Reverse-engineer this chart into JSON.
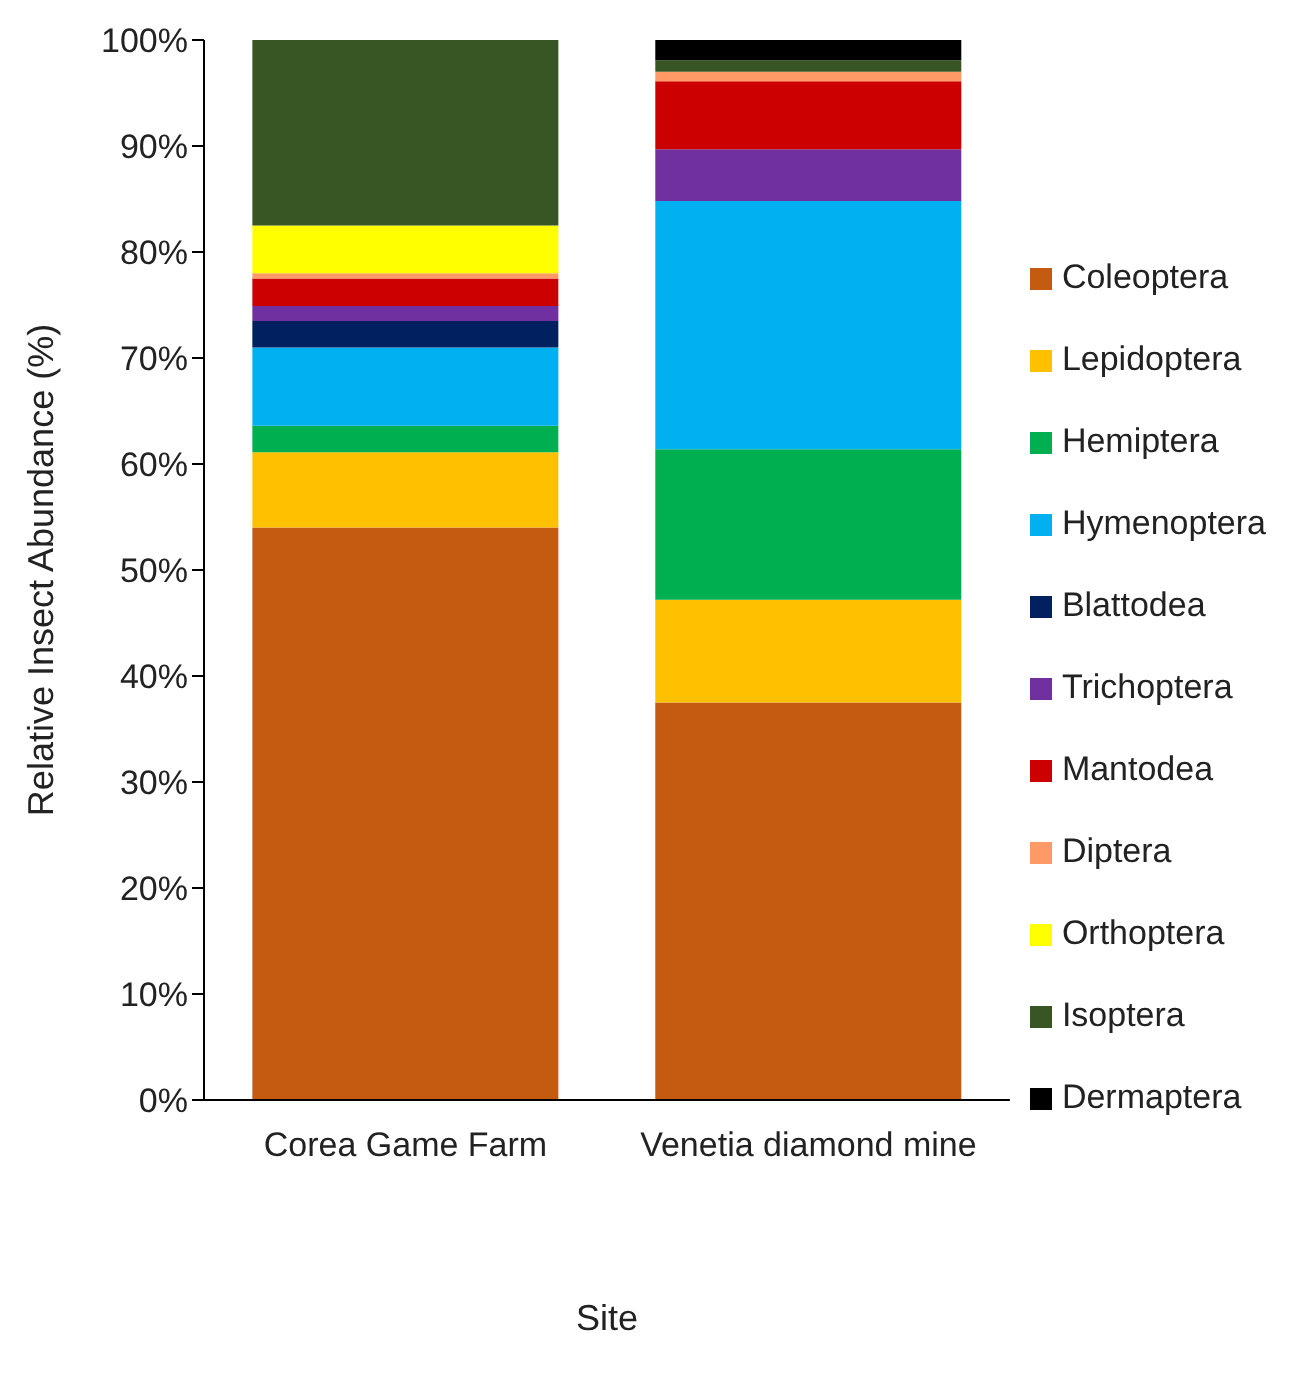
{
  "chart_data": {
    "type": "bar",
    "stacked": true,
    "xlabel": "Site",
    "ylabel": "Relative Insect Abundance (%)",
    "categories": [
      "Corea Game Farm",
      "Venetia diamond mine"
    ],
    "series": [
      {
        "name": "Coleoptera",
        "color": "#c55a11",
        "values": [
          54.0,
          37.5
        ]
      },
      {
        "name": "Lepidoptera",
        "color": "#ffc000",
        "values": [
          7.1,
          9.7
        ]
      },
      {
        "name": "Hemiptera",
        "color": "#00b050",
        "values": [
          2.5,
          14.2
        ]
      },
      {
        "name": "Hymenoptera",
        "color": "#00b0f0",
        "values": [
          7.4,
          23.4
        ]
      },
      {
        "name": "Blattodea",
        "color": "#002060",
        "values": [
          2.5,
          0
        ]
      },
      {
        "name": "Trichoptera",
        "color": "#7030a0",
        "values": [
          1.4,
          4.9
        ]
      },
      {
        "name": "Mantodea",
        "color": "#cc0000",
        "values": [
          2.6,
          6.4
        ]
      },
      {
        "name": "Diptera",
        "color": "#ff9966",
        "values": [
          0.5,
          0.9
        ]
      },
      {
        "name": "Orthoptera",
        "color": "#ffff00",
        "values": [
          4.5,
          0
        ]
      },
      {
        "name": "Isoptera",
        "color": "#375623",
        "values": [
          17.5,
          1.1
        ]
      },
      {
        "name": "Dermaptera",
        "color": "#000000",
        "values": [
          0,
          1.9
        ]
      }
    ],
    "ylim": [
      0,
      100
    ],
    "yticks": [
      {
        "value": 0,
        "label": "0%"
      },
      {
        "value": 10,
        "label": "10%"
      },
      {
        "value": 20,
        "label": "20%"
      },
      {
        "value": 30,
        "label": "30%"
      },
      {
        "value": 40,
        "label": "40%"
      },
      {
        "value": 50,
        "label": "50%"
      },
      {
        "value": 60,
        "label": "60%"
      },
      {
        "value": 70,
        "label": "70%"
      },
      {
        "value": 80,
        "label": "80%"
      },
      {
        "value": 90,
        "label": "90%"
      },
      {
        "value": 100,
        "label": "100%"
      }
    ],
    "grid": false,
    "legend": "right"
  }
}
